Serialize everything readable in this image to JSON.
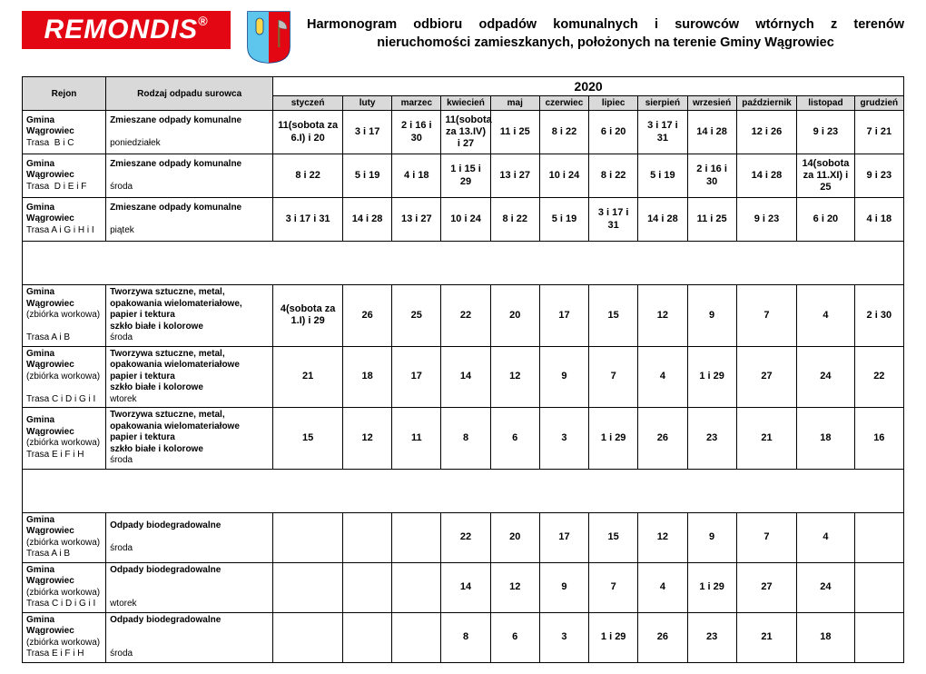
{
  "logo_text": "REMONDIS",
  "logo_reg": "®",
  "title1": "Harmonogram odbioru odpadów komunalnych i surowców wtórnych z terenów",
  "title2": "nieruchomości zamieszkanych, położonych na terenie Gminy Wągrowiec",
  "year": "2020",
  "h_rejon": "Rejon",
  "h_rodzaj": "Rodzaj odpadu surowca",
  "months": [
    "styczeń",
    "luty",
    "marzec",
    "kwiecień",
    "maj",
    "czerwiec",
    "lipiec",
    "sierpień",
    "wrzesień",
    "październik",
    "listopad",
    "grudzień"
  ],
  "rows": [
    {
      "rejon": "<b>Gmina Wągrowiec</b><br>Trasa&nbsp; B i C",
      "rodzaj": "<b>Zmieszane odpady komunalne</b><br><br>poniedziałek",
      "v": [
        "11(sobota za 6.I) i 20",
        "3 i 17",
        "2 i 16 i 30",
        "11(sobota za 13.IV) i 27",
        "11 i 25",
        "8 i 22",
        "6 i 20",
        "3 i 17 i 31",
        "14 i 28",
        "12 i 26",
        "9 i 23",
        "7 i 21"
      ]
    },
    {
      "rejon": "<b>Gmina Wągrowiec</b><br>Trasa&nbsp; D i E i F",
      "rodzaj": "<b>Zmieszane odpady komunalne</b><br><br>środa",
      "v": [
        "8 i 22",
        "5 i 19",
        "4 i 18",
        "1 i 15 i 29",
        "13 i 27",
        "10 i 24",
        "8 i 22",
        "5 i 19",
        "2 i 16 i 30",
        "14 i 28",
        "14(sobota za 11.XI) i 25",
        "9 i 23"
      ]
    },
    {
      "rejon": "<b>Gmina Wągrowiec</b><br>Trasa A i G i H i I",
      "rodzaj": "<b>Zmieszane odpady komunalne</b><br><br>piątek",
      "v": [
        "3 i 17 i 31",
        "14 i 28",
        "13 i 27",
        "10 i 24",
        "8 i 22",
        "5 i 19",
        "3 i 17 i 31",
        "14 i 28",
        "11 i 25",
        "9 i 23",
        "6 i 20",
        "4 i 18"
      ]
    }
  ],
  "rows2": [
    {
      "rejon": "<b>Gmina Wągrowiec</b><br>(zbiórka workowa)<br><br>Trasa A i B",
      "rodzaj": "<b>Tworzywa sztuczne, metal, opakowania wielomateriałowe,<br>papier i tektura<br>szkło białe i kolorowe</b><br>środa",
      "v": [
        "4(sobota za 1.I) i 29",
        "26",
        "25",
        "22",
        "20",
        "17",
        "15",
        "12",
        "9",
        "7",
        "4",
        "2 i 30"
      ]
    },
    {
      "rejon": "<b>Gmina Wągrowiec</b><br>(zbiórka workowa)<br><br>Trasa C i D i G i I",
      "rodzaj": "<b>Tworzywa sztuczne, metal, opakowania wielomateriałowe<br>papier i tektura<br>szkło białe i kolorowe</b><br>wtorek",
      "v": [
        "21",
        "18",
        "17",
        "14",
        "12",
        "9",
        "7",
        "4",
        "1 i 29",
        "27",
        "24",
        "22"
      ]
    },
    {
      "rejon": "<b>Gmina Wągrowiec</b><br>(zbiórka workowa)<br>Trasa E i F i H",
      "rodzaj": "<b>Tworzywa sztuczne, metal, opakowania wielomateriałowe<br>papier i tektura<br>szkło białe i kolorowe</b><br>środa",
      "v": [
        "15",
        "12",
        "11",
        "8",
        "6",
        "3",
        "1 i 29",
        "26",
        "23",
        "21",
        "18",
        "16"
      ]
    }
  ],
  "rows3": [
    {
      "rejon": "<b>Gmina Wągrowiec</b><br>(zbiórka workowa)<br>Trasa A i B",
      "rodzaj": "<b>Odpady biodegradowalne</b><br><br>środa",
      "v": [
        "",
        "",
        "",
        "22",
        "20",
        "17",
        "15",
        "12",
        "9",
        "7",
        "4",
        ""
      ]
    },
    {
      "rejon": "<b>Gmina Wągrowiec</b><br>(zbiórka workowa)<br>Trasa C i D i G i I",
      "rodzaj": "<b>Odpady biodegradowalne</b><br><br><br>wtorek",
      "v": [
        "",
        "",
        "",
        "14",
        "12",
        "9",
        "7",
        "4",
        "1 i 29",
        "27",
        "24",
        ""
      ]
    },
    {
      "rejon": "<b>Gmina Wągrowiec</b><br>(zbiórka workowa)<br>Trasa E i F i H",
      "rodzaj": "<b>Odpady biodegradowalne</b><br><br><br>środa",
      "v": [
        "",
        "",
        "",
        "8",
        "6",
        "3",
        "1 i 29",
        "26",
        "23",
        "21",
        "18",
        ""
      ]
    }
  ]
}
